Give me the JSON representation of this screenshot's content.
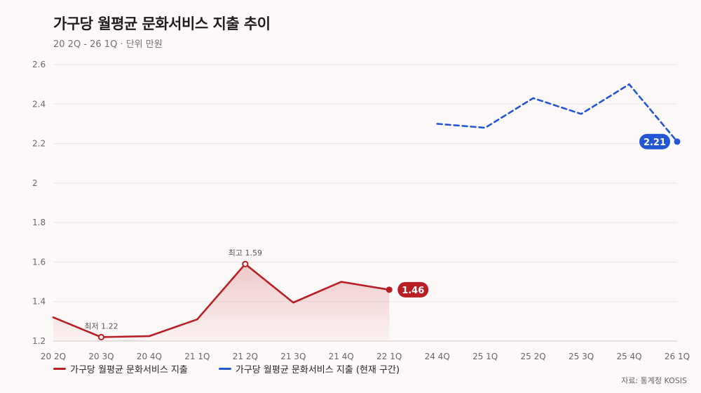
{
  "title": "가구당 월평균 문화서비스 지출 추이",
  "subtitle": "20 2Q - 26 1Q · 단위 만원",
  "source": "자료: 통계청 KOSIS",
  "colors": {
    "series1": "#b81f24",
    "series2": "#2456d4",
    "grid": "#ece6e5",
    "axis_text": "#6f6464"
  },
  "chart_data": {
    "type": "line",
    "categories": [
      "20 2Q",
      "20 3Q",
      "20 4Q",
      "21 1Q",
      "21 2Q",
      "21 3Q",
      "21 4Q",
      "22 1Q",
      "24 4Q",
      "25 1Q",
      "25 2Q",
      "25 3Q",
      "25 4Q",
      "26 1Q"
    ],
    "ylim": [
      1.2,
      2.6
    ],
    "yticks": [
      "1.2",
      "1.4",
      "1.6",
      "1.8",
      "2",
      "2.2",
      "2.4",
      "2.6"
    ],
    "grid": true,
    "legend_position": "bottom-left",
    "series": [
      {
        "name": "가구당 월평균 문화서비스 지출",
        "color": "#b81f24",
        "style": "solid",
        "area": true,
        "values": [
          1.32,
          1.22,
          1.225,
          1.31,
          1.59,
          1.395,
          1.5,
          1.46,
          null,
          null,
          null,
          null,
          null,
          null
        ],
        "end_label": "1.46"
      },
      {
        "name": "가구당 월평균 문화서비스 지출 (현재 구간)",
        "color": "#2456d4",
        "style": "dashed",
        "area": false,
        "values": [
          null,
          null,
          null,
          null,
          null,
          null,
          null,
          null,
          2.3,
          2.28,
          2.43,
          2.35,
          2.5,
          2.21
        ],
        "end_label": "2.21"
      }
    ],
    "annotations": [
      {
        "label": "최저 1.22",
        "category": "20 3Q",
        "value": 1.22,
        "series": 0
      },
      {
        "label": "최고 1.59",
        "category": "21 2Q",
        "value": 1.59,
        "series": 0
      }
    ]
  }
}
